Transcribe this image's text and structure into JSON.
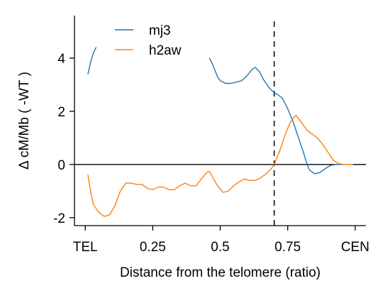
{
  "chart_data": {
    "type": "line",
    "title": "",
    "xlabel": "Distance from the telomere (ratio)",
    "ylabel": "Δ  cM/Mb ( -WT )",
    "xlim": [
      -0.04,
      1.04
    ],
    "ylim": [
      -2.3,
      5.6
    ],
    "x_ticks": [
      {
        "value": 0,
        "label": "TEL"
      },
      {
        "value": 0.25,
        "label": "0.25"
      },
      {
        "value": 0.5,
        "label": "0.5"
      },
      {
        "value": 0.75,
        "label": "0.75"
      },
      {
        "value": 1,
        "label": "CEN"
      }
    ],
    "y_ticks": [
      {
        "value": -2,
        "label": "-2"
      },
      {
        "value": 0,
        "label": "0"
      },
      {
        "value": 2,
        "label": "2"
      },
      {
        "value": 4,
        "label": "4"
      }
    ],
    "reference_lines": [
      {
        "orientation": "horizontal",
        "value": 0,
        "style": "solid",
        "color": "#000000"
      },
      {
        "orientation": "vertical",
        "value": 0.7,
        "style": "dashed",
        "color": "#000000"
      }
    ],
    "legend": {
      "placement": "top-left"
    },
    "series": [
      {
        "name": "mj3",
        "color": "#1f77b4",
        "segments": [
          [
            [
              0.01,
              3.4
            ],
            [
              0.02,
              3.85
            ],
            [
              0.03,
              4.2
            ],
            [
              0.04,
              4.4
            ]
          ],
          [
            [
              0.46,
              4.0
            ],
            [
              0.47,
              3.8
            ],
            [
              0.48,
              3.55
            ],
            [
              0.49,
              3.3
            ],
            [
              0.5,
              3.15
            ],
            [
              0.52,
              3.05
            ],
            [
              0.54,
              3.05
            ],
            [
              0.56,
              3.1
            ],
            [
              0.58,
              3.15
            ],
            [
              0.6,
              3.35
            ],
            [
              0.62,
              3.6
            ],
            [
              0.63,
              3.65
            ],
            [
              0.645,
              3.5
            ],
            [
              0.66,
              3.2
            ],
            [
              0.68,
              2.9
            ],
            [
              0.7,
              2.7
            ],
            [
              0.71,
              2.65
            ],
            [
              0.73,
              2.5
            ],
            [
              0.75,
              2.1
            ],
            [
              0.77,
              1.6
            ],
            [
              0.79,
              1.0
            ],
            [
              0.81,
              0.4
            ],
            [
              0.82,
              0.05
            ],
            [
              0.83,
              -0.2
            ],
            [
              0.85,
              -0.35
            ],
            [
              0.87,
              -0.3
            ],
            [
              0.89,
              -0.15
            ],
            [
              0.91,
              -0.03
            ],
            [
              0.93,
              0.0
            ],
            [
              0.96,
              0.0
            ],
            [
              0.99,
              0.0
            ]
          ]
        ]
      },
      {
        "name": "h2aw",
        "color": "#ff7f0e",
        "segments": [
          [
            [
              0.01,
              -0.4
            ],
            [
              0.02,
              -1.0
            ],
            [
              0.03,
              -1.5
            ],
            [
              0.05,
              -1.8
            ],
            [
              0.07,
              -1.95
            ],
            [
              0.09,
              -1.9
            ],
            [
              0.11,
              -1.55
            ],
            [
              0.13,
              -1.0
            ],
            [
              0.15,
              -0.7
            ],
            [
              0.17,
              -0.7
            ],
            [
              0.19,
              -0.75
            ],
            [
              0.21,
              -0.75
            ],
            [
              0.23,
              -0.9
            ],
            [
              0.25,
              -0.95
            ],
            [
              0.27,
              -0.85
            ],
            [
              0.29,
              -0.85
            ],
            [
              0.31,
              -0.95
            ],
            [
              0.33,
              -0.95
            ],
            [
              0.35,
              -0.8
            ],
            [
              0.37,
              -0.7
            ],
            [
              0.39,
              -0.8
            ],
            [
              0.41,
              -0.8
            ],
            [
              0.43,
              -0.55
            ],
            [
              0.45,
              -0.3
            ],
            [
              0.46,
              -0.25
            ],
            [
              0.47,
              -0.45
            ],
            [
              0.49,
              -0.8
            ],
            [
              0.51,
              -1.05
            ],
            [
              0.53,
              -1.0
            ],
            [
              0.55,
              -0.8
            ],
            [
              0.57,
              -0.65
            ],
            [
              0.59,
              -0.55
            ],
            [
              0.61,
              -0.6
            ],
            [
              0.63,
              -0.6
            ],
            [
              0.65,
              -0.5
            ],
            [
              0.67,
              -0.35
            ],
            [
              0.69,
              -0.15
            ],
            [
              0.7,
              0.0
            ],
            [
              0.72,
              0.5
            ],
            [
              0.74,
              1.1
            ],
            [
              0.76,
              1.6
            ],
            [
              0.78,
              1.85
            ],
            [
              0.8,
              1.6
            ],
            [
              0.82,
              1.3
            ],
            [
              0.84,
              1.15
            ],
            [
              0.86,
              1.0
            ],
            [
              0.88,
              0.75
            ],
            [
              0.9,
              0.45
            ],
            [
              0.92,
              0.15
            ],
            [
              0.94,
              0.03
            ],
            [
              0.96,
              0.0
            ],
            [
              0.99,
              0.0
            ]
          ]
        ]
      }
    ]
  }
}
